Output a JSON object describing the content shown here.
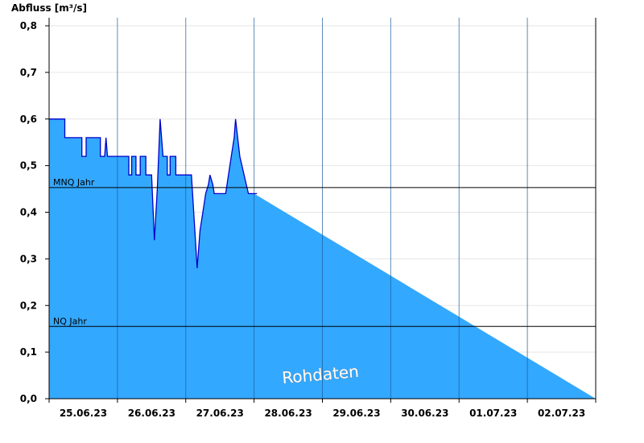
{
  "chart_data": {
    "type": "area",
    "ylabel": "Abfluss [m³/s]",
    "ylim": [
      0,
      0.82
    ],
    "yticks": [
      "0,0",
      "0,1",
      "0,2",
      "0,3",
      "0,4",
      "0,5",
      "0,6",
      "0,7",
      "0,8"
    ],
    "xlim": [
      "25.06.23 00:00",
      "02.07.23 24:00"
    ],
    "x_tick_labels": [
      "25.06.23",
      "26.06.23",
      "27.06.23",
      "28.06.23",
      "29.06.23",
      "30.06.23",
      "01.07.23",
      "02.07.23"
    ],
    "grid": true,
    "series": [
      {
        "values": [
          [
            "25.06.23 00:00",
            0.6
          ],
          [
            "25.06.23 05:30",
            0.6
          ],
          [
            "25.06.23 05:30",
            0.56
          ],
          [
            "25.06.23 11:30",
            0.56
          ],
          [
            "25.06.23 11:30",
            0.52
          ],
          [
            "25.06.23 13:00",
            0.52
          ],
          [
            "25.06.23 13:00",
            0.56
          ],
          [
            "25.06.23 18:00",
            0.56
          ],
          [
            "25.06.23 18:00",
            0.52
          ],
          [
            "25.06.23 19:30",
            0.52
          ],
          [
            "25.06.23 20:00",
            0.56
          ],
          [
            "25.06.23 20:30",
            0.52
          ],
          [
            "26.06.23 00:00",
            0.52
          ],
          [
            "26.06.23 04:00",
            0.52
          ],
          [
            "26.06.23 04:00",
            0.48
          ],
          [
            "26.06.23 05:00",
            0.48
          ],
          [
            "26.06.23 05:00",
            0.52
          ],
          [
            "26.06.23 06:30",
            0.52
          ],
          [
            "26.06.23 06:30",
            0.48
          ],
          [
            "26.06.23 08:00",
            0.48
          ],
          [
            "26.06.23 08:00",
            0.52
          ],
          [
            "26.06.23 10:00",
            0.52
          ],
          [
            "26.06.23 10:00",
            0.48
          ],
          [
            "26.06.23 12:00",
            0.48
          ],
          [
            "26.06.23 13:00",
            0.34
          ],
          [
            "26.06.23 14:00",
            0.45
          ],
          [
            "26.06.23 15:00",
            0.6
          ],
          [
            "26.06.23 16:00",
            0.52
          ],
          [
            "26.06.23 17:30",
            0.52
          ],
          [
            "26.06.23 17:30",
            0.48
          ],
          [
            "26.06.23 18:30",
            0.48
          ],
          [
            "26.06.23 18:30",
            0.52
          ],
          [
            "26.06.23 20:30",
            0.52
          ],
          [
            "26.06.23 20:30",
            0.48
          ],
          [
            "27.06.23 00:00",
            0.48
          ],
          [
            "27.06.23 02:00",
            0.48
          ],
          [
            "27.06.23 04:00",
            0.28
          ],
          [
            "27.06.23 05:00",
            0.36
          ],
          [
            "27.06.23 06:00",
            0.4
          ],
          [
            "27.06.23 07:00",
            0.44
          ],
          [
            "27.06.23 08:00",
            0.46
          ],
          [
            "27.06.23 08:30",
            0.48
          ],
          [
            "27.06.23 09:30",
            0.46
          ],
          [
            "27.06.23 10:00",
            0.44
          ],
          [
            "27.06.23 14:00",
            0.44
          ],
          [
            "27.06.23 15:00",
            0.48
          ],
          [
            "27.06.23 16:00",
            0.52
          ],
          [
            "27.06.23 17:00",
            0.56
          ],
          [
            "27.06.23 17:30",
            0.6
          ],
          [
            "27.06.23 19:00",
            0.52
          ],
          [
            "27.06.23 20:30",
            0.48
          ],
          [
            "27.06.23 22:00",
            0.44
          ],
          [
            "28.06.23 00:00",
            0.44
          ],
          [
            "28.06.23 01:00",
            0.44
          ],
          [
            "28.06.23 01:00",
            0.44
          ],
          [
            "28.06.23 00:00",
            0.44
          ],
          [
            "28.06.23 00:00",
            0.44
          ]
        ]
      }
    ],
    "reference_lines": [
      {
        "label": "MNQ Jahr",
        "value": 0.453
      },
      {
        "label": "NQ Jahr",
        "value": 0.155
      }
    ],
    "watermark": "Rohdaten",
    "colors": {
      "fill": "#33a8ff",
      "line": "#0000cc",
      "grid": "#e6e6e6",
      "day_divider": "#1a5c99"
    }
  }
}
